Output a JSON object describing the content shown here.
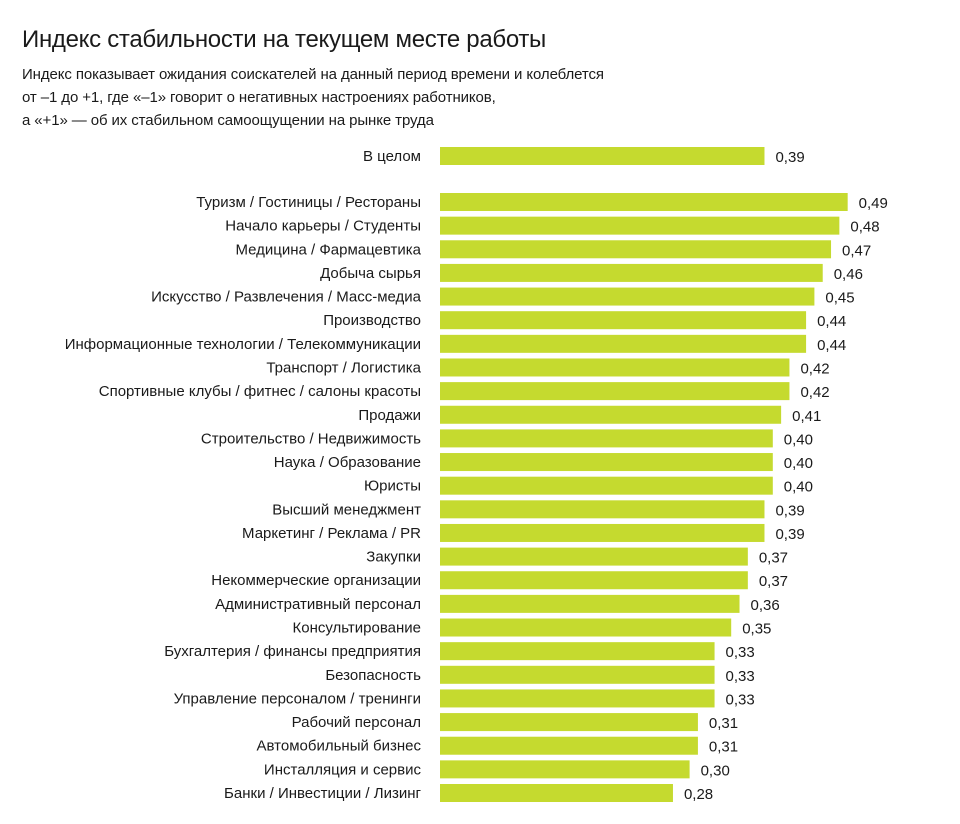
{
  "chart_data": {
    "type": "bar",
    "orientation": "horizontal",
    "title": "Индекс стабильности на текущем месте работы",
    "subtitle_lines": [
      "Индекс показывает ожидания соискателей на данный период времени и колеблется",
      "от –1 до +1, где «–1» говорит о негативных настроениях работников,",
      "а «+1» — об их стабильном самоощущении на рынке труда"
    ],
    "overall": {
      "category": "В целом",
      "value": 0.39,
      "label": "0,39"
    },
    "categories": [
      "Туризм / Гостиницы / Рестораны",
      "Начало карьеры / Студенты",
      "Медицина / Фармацевтика",
      "Добыча сырья",
      "Искусство / Развлечения / Масс-медиа",
      "Производство",
      "Информационные технологии / Телекоммуникации",
      "Транспорт / Логистика",
      "Спортивные клубы / фитнес / салоны красоты",
      "Продажи",
      "Строительство / Недвижимость",
      "Наука / Образование",
      "Юристы",
      "Высший менеджмент",
      "Маркетинг / Реклама / PR",
      "Закупки",
      "Некоммерческие организации",
      "Административный персонал",
      "Консультирование",
      "Бухгалтерия / финансы предприятия",
      "Безопасность",
      "Управление персоналом / тренинги",
      "Рабочий персонал",
      "Автомобильный бизнес",
      "Инсталляция и сервис",
      "Банки / Инвестиции / Лизинг"
    ],
    "values": [
      0.49,
      0.48,
      0.47,
      0.46,
      0.45,
      0.44,
      0.44,
      0.42,
      0.42,
      0.41,
      0.4,
      0.4,
      0.4,
      0.39,
      0.39,
      0.37,
      0.37,
      0.36,
      0.35,
      0.33,
      0.33,
      0.33,
      0.31,
      0.31,
      0.3,
      0.28
    ],
    "value_labels": [
      "0,49",
      "0,48",
      "0,47",
      "0,46",
      "0,45",
      "0,44",
      "0,44",
      "0,42",
      "0,42",
      "0,41",
      "0,40",
      "0,40",
      "0,40",
      "0,39",
      "0,39",
      "0,37",
      "0,37",
      "0,36",
      "0,35",
      "0,33",
      "0,33",
      "0,33",
      "0,31",
      "0,31",
      "0,30",
      "0,28"
    ],
    "xlim": [
      0,
      0.5
    ],
    "grid": false,
    "legend": "none",
    "bar_color": "#c5da2f",
    "text_color": "#1a1a1a"
  }
}
